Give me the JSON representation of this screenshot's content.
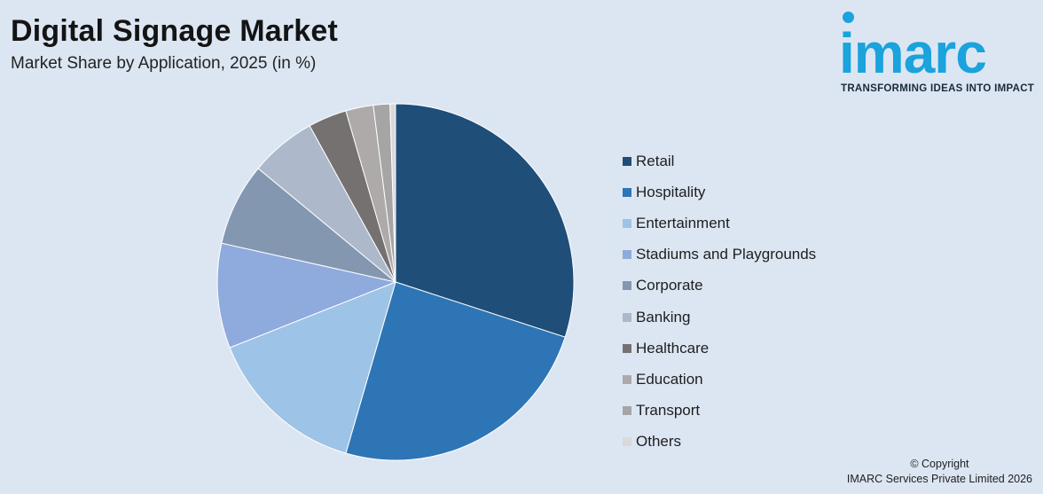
{
  "header": {
    "title": "Digital Signage Market",
    "subtitle": "Market Share by Application, 2025 (in %)"
  },
  "logo": {
    "wordmark": "imarc",
    "tagline": "TRANSFORMING IDEAS INTO IMPACT",
    "color": "#1aa3dc"
  },
  "chart_data": {
    "type": "pie",
    "title": "Digital Signage Market",
    "subtitle": "Market Share by Application, 2025 (in %)",
    "legend_position": "right",
    "slices": [
      {
        "name": "Retail",
        "value": 30.0,
        "color": "#1f4e79"
      },
      {
        "name": "Hospitality",
        "value": 24.5,
        "color": "#2e75b6"
      },
      {
        "name": "Entertainment",
        "value": 14.5,
        "color": "#9dc3e6"
      },
      {
        "name": "Stadiums and Playgrounds",
        "value": 9.5,
        "color": "#8faadc"
      },
      {
        "name": "Corporate",
        "value": 7.5,
        "color": "#8497b0"
      },
      {
        "name": "Banking",
        "value": 6.0,
        "color": "#adb9ca"
      },
      {
        "name": "Healthcare",
        "value": 3.5,
        "color": "#767171"
      },
      {
        "name": "Education",
        "value": 2.5,
        "color": "#aeaaaa"
      },
      {
        "name": "Transport",
        "value": 1.5,
        "color": "#a5a5a5"
      },
      {
        "name": "Others",
        "value": 0.5,
        "color": "#d9d9d9"
      }
    ]
  },
  "footer": {
    "line1": "© Copyright",
    "line2": "IMARC Services Private Limited 2026"
  }
}
